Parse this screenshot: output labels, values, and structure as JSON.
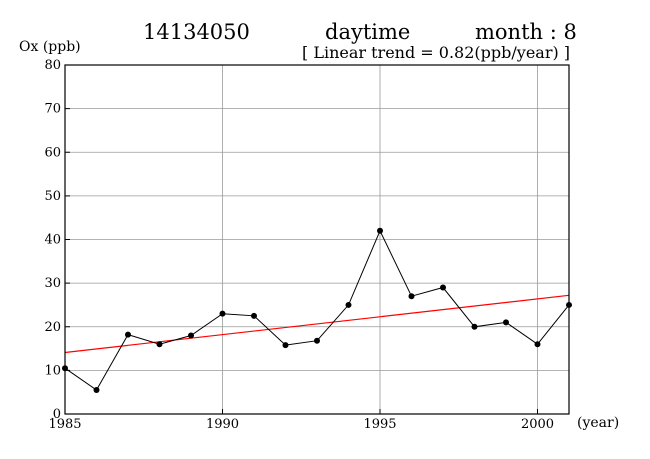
{
  "header": {
    "station": "14134050",
    "period": "daytime",
    "month": "month : 8",
    "trend": "[ Linear trend = 0.82(ppb/year) ]"
  },
  "chart_data": {
    "type": "line",
    "ylabel": "Ox (ppb)",
    "xlabel": "(year)",
    "xlim": [
      1985,
      2001
    ],
    "ylim": [
      0,
      80
    ],
    "xticks": [
      1985,
      1990,
      1995,
      2000
    ],
    "yticks": [
      0,
      10,
      20,
      30,
      40,
      50,
      60,
      70,
      80
    ],
    "grid": true,
    "series": [
      {
        "color": "#000000",
        "x": [
          1985,
          1986,
          1987,
          1988,
          1989,
          1990,
          1991,
          1992,
          1993,
          1994,
          1995,
          1996,
          1997,
          1998,
          1999,
          2000,
          2001
        ],
        "values": [
          10.5,
          5.5,
          18.2,
          16.0,
          18.0,
          23.0,
          22.5,
          15.8,
          16.8,
          25.0,
          42.0,
          27.0,
          29.0,
          20.0,
          21.0,
          16.0,
          25.0
        ]
      }
    ],
    "trend_line": {
      "color": "#ff0000",
      "x": [
        1985,
        2001
      ],
      "y": [
        14.1,
        27.2
      ]
    }
  }
}
